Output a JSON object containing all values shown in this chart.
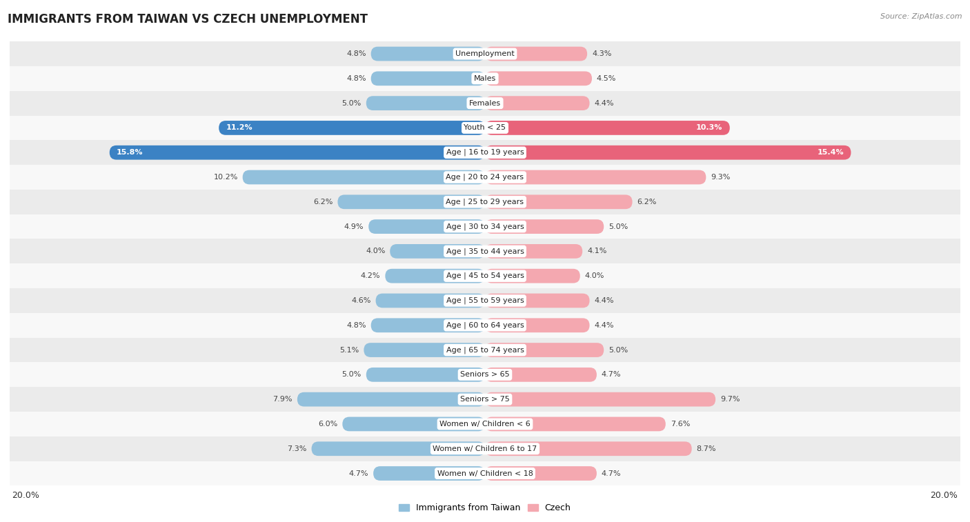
{
  "title": "IMMIGRANTS FROM TAIWAN VS CZECH UNEMPLOYMENT",
  "source": "Source: ZipAtlas.com",
  "categories": [
    "Unemployment",
    "Males",
    "Females",
    "Youth < 25",
    "Age | 16 to 19 years",
    "Age | 20 to 24 years",
    "Age | 25 to 29 years",
    "Age | 30 to 34 years",
    "Age | 35 to 44 years",
    "Age | 45 to 54 years",
    "Age | 55 to 59 years",
    "Age | 60 to 64 years",
    "Age | 65 to 74 years",
    "Seniors > 65",
    "Seniors > 75",
    "Women w/ Children < 6",
    "Women w/ Children 6 to 17",
    "Women w/ Children < 18"
  ],
  "taiwan_values": [
    4.8,
    4.8,
    5.0,
    11.2,
    15.8,
    10.2,
    6.2,
    4.9,
    4.0,
    4.2,
    4.6,
    4.8,
    5.1,
    5.0,
    7.9,
    6.0,
    7.3,
    4.7
  ],
  "czech_values": [
    4.3,
    4.5,
    4.4,
    10.3,
    15.4,
    9.3,
    6.2,
    5.0,
    4.1,
    4.0,
    4.4,
    4.4,
    5.0,
    4.7,
    9.7,
    7.6,
    8.7,
    4.7
  ],
  "taiwan_color": "#92C0DC",
  "czech_color": "#F4A8B0",
  "taiwan_highlight_color": "#3B82C4",
  "czech_highlight_color": "#E8637A",
  "highlight_rows": [
    3,
    4
  ],
  "x_max": 20.0,
  "bar_height": 0.58,
  "row_bg_light": "#EBEBEB",
  "row_bg_white": "#F8F8F8",
  "legend_taiwan": "Immigrants from Taiwan",
  "legend_czech": "Czech",
  "title_fontsize": 12,
  "source_fontsize": 8,
  "label_fontsize": 9,
  "category_fontsize": 8,
  "value_fontsize": 8
}
